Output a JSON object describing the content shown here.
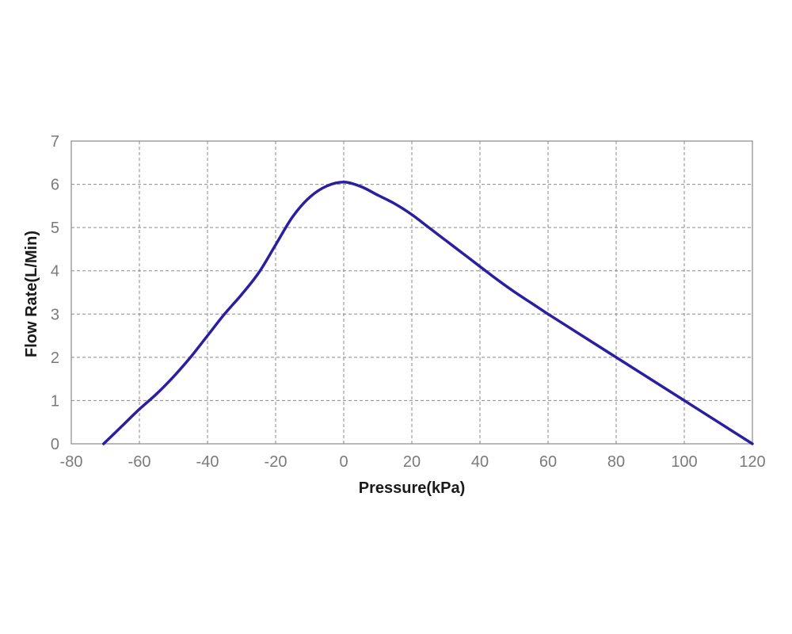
{
  "chart_data": {
    "type": "line",
    "title": "",
    "xlabel": "Pressure(kPa)",
    "ylabel": "Flow Rate(L/Min)",
    "xlim": [
      -80,
      120
    ],
    "ylim": [
      0,
      7
    ],
    "x_ticks": [
      "-80",
      "-60",
      "-40",
      "-20",
      "0",
      "20",
      "40",
      "60",
      "80",
      "100",
      "120"
    ],
    "y_ticks": [
      "0",
      "1",
      "2",
      "3",
      "4",
      "5",
      "6",
      "7"
    ],
    "grid": true,
    "line_color": "#2a1fa0",
    "series": [
      {
        "x": [
          -70.5,
          -65,
          -60,
          -55,
          -50,
          -45,
          -40,
          -35,
          -30,
          -25,
          -20,
          -15,
          -10,
          -5,
          0,
          5,
          10,
          15,
          20,
          25,
          30,
          35,
          40,
          45,
          50,
          55,
          60,
          70,
          80,
          90,
          100,
          110,
          120
        ],
        "values": [
          0,
          0.42,
          0.8,
          1.15,
          1.55,
          2.0,
          2.5,
          3.0,
          3.45,
          3.95,
          4.6,
          5.25,
          5.7,
          5.96,
          6.05,
          5.95,
          5.75,
          5.55,
          5.3,
          5.0,
          4.7,
          4.4,
          4.1,
          3.8,
          3.52,
          3.26,
          3.0,
          2.5,
          2.0,
          1.5,
          1.0,
          0.5,
          0
        ]
      }
    ]
  }
}
